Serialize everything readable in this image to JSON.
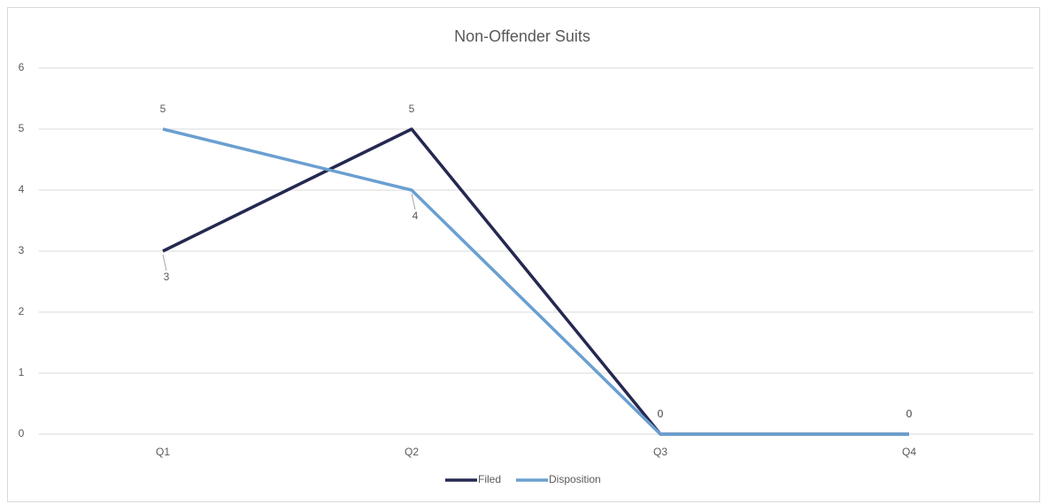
{
  "chart_data": {
    "type": "line",
    "title": "Non-Offender Suits",
    "categories": [
      "Q1",
      "Q2",
      "Q3",
      "Q4"
    ],
    "series": [
      {
        "name": "Filed",
        "color": "#252850",
        "values": [
          3,
          5,
          0,
          0
        ]
      },
      {
        "name": "Disposition",
        "color": "#6a9fd1",
        "values": [
          5,
          4,
          0,
          0
        ]
      }
    ],
    "ylim": [
      0,
      6
    ],
    "yticks": [
      0,
      1,
      2,
      3,
      4,
      5,
      6
    ],
    "grid": true,
    "legend": "bottom"
  }
}
